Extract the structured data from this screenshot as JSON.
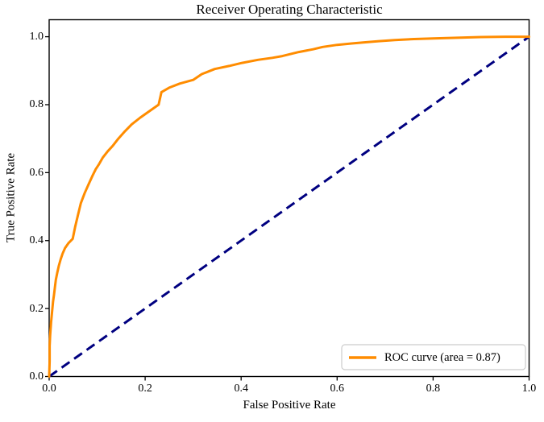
{
  "chart": {
    "title": "Receiver Operating Characteristic",
    "xlabel": "False Positive Rate",
    "ylabel": "True Positive Rate",
    "legend_label": "ROC curve (area = 0.87)"
  },
  "colors": {
    "roc_curve": "#ff8c00",
    "diagonal": "#000080",
    "spine": "#000000",
    "legend_border": "#cccccc",
    "background": "#ffffff",
    "text": "#000000"
  },
  "chart_data": {
    "type": "line",
    "title": "Receiver Operating Characteristic",
    "xlabel": "False Positive Rate",
    "ylabel": "True Positive Rate",
    "xlim": [
      0.0,
      1.0
    ],
    "ylim": [
      0.0,
      1.05
    ],
    "x_tick_labels": [
      "0.0",
      "0.2",
      "0.4",
      "0.6",
      "0.8",
      "1.0"
    ],
    "y_tick_labels": [
      "0.0",
      "0.2",
      "0.4",
      "0.6",
      "0.8",
      "1.0"
    ],
    "grid": false,
    "legend_position": "lower right",
    "auc": 0.87,
    "series": [
      {
        "name": "ROC curve (area = 0.87)",
        "color": "#ff8c00",
        "style": "solid",
        "points": [
          [
            0.0,
            0.0
          ],
          [
            0.001,
            0.045
          ],
          [
            0.001,
            0.09
          ],
          [
            0.002,
            0.12
          ],
          [
            0.003,
            0.14
          ],
          [
            0.004,
            0.16
          ],
          [
            0.005,
            0.175
          ],
          [
            0.006,
            0.19
          ],
          [
            0.007,
            0.205
          ],
          [
            0.008,
            0.22
          ],
          [
            0.01,
            0.24
          ],
          [
            0.012,
            0.262
          ],
          [
            0.014,
            0.285
          ],
          [
            0.017,
            0.306
          ],
          [
            0.02,
            0.325
          ],
          [
            0.024,
            0.345
          ],
          [
            0.028,
            0.362
          ],
          [
            0.033,
            0.378
          ],
          [
            0.04,
            0.392
          ],
          [
            0.049,
            0.405
          ],
          [
            0.054,
            0.44
          ],
          [
            0.06,
            0.475
          ],
          [
            0.066,
            0.51
          ],
          [
            0.074,
            0.54
          ],
          [
            0.082,
            0.565
          ],
          [
            0.09,
            0.59
          ],
          [
            0.097,
            0.61
          ],
          [
            0.104,
            0.625
          ],
          [
            0.112,
            0.645
          ],
          [
            0.122,
            0.663
          ],
          [
            0.132,
            0.678
          ],
          [
            0.144,
            0.7
          ],
          [
            0.158,
            0.722
          ],
          [
            0.172,
            0.742
          ],
          [
            0.19,
            0.762
          ],
          [
            0.208,
            0.78
          ],
          [
            0.228,
            0.8
          ],
          [
            0.234,
            0.837
          ],
          [
            0.25,
            0.85
          ],
          [
            0.272,
            0.862
          ],
          [
            0.3,
            0.873
          ],
          [
            0.318,
            0.89
          ],
          [
            0.345,
            0.905
          ],
          [
            0.375,
            0.914
          ],
          [
            0.402,
            0.923
          ],
          [
            0.435,
            0.932
          ],
          [
            0.465,
            0.938
          ],
          [
            0.486,
            0.943
          ],
          [
            0.52,
            0.955
          ],
          [
            0.55,
            0.963
          ],
          [
            0.57,
            0.97
          ],
          [
            0.6,
            0.976
          ],
          [
            0.63,
            0.98
          ],
          [
            0.654,
            0.983
          ],
          [
            0.687,
            0.987
          ],
          [
            0.72,
            0.99
          ],
          [
            0.76,
            0.993
          ],
          [
            0.8,
            0.995
          ],
          [
            0.85,
            0.997
          ],
          [
            0.9,
            0.999
          ],
          [
            0.95,
            1.0
          ],
          [
            1.0,
            1.0
          ]
        ]
      },
      {
        "name": "chance-diagonal",
        "color": "#000080",
        "style": "dashed",
        "points": [
          [
            0.0,
            0.0
          ],
          [
            1.0,
            1.0
          ]
        ]
      }
    ]
  }
}
